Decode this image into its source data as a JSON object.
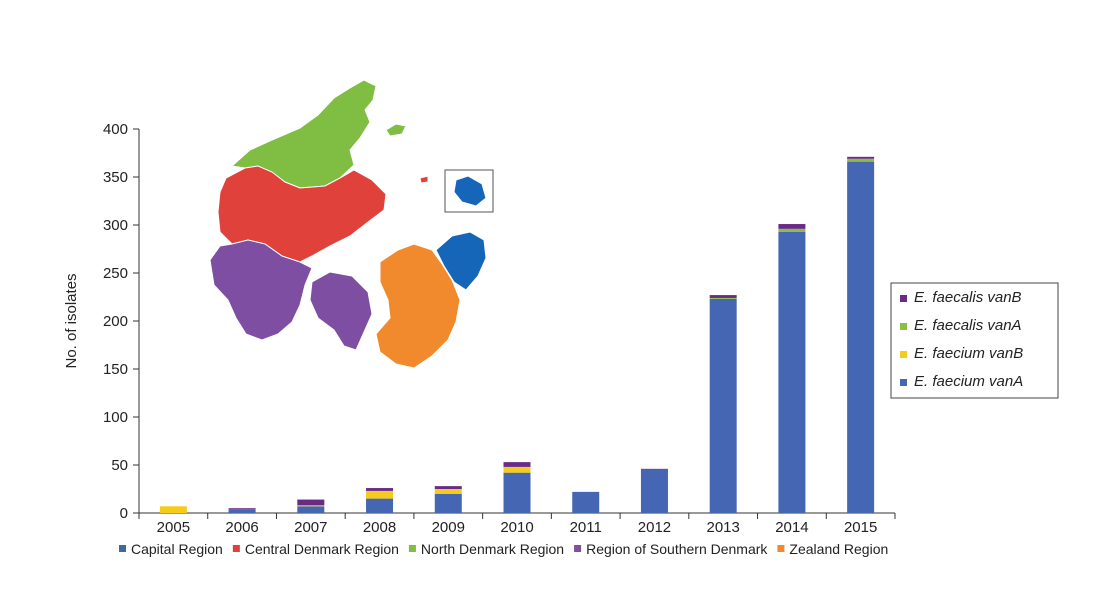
{
  "chart_data": {
    "type": "bar",
    "stacked": true,
    "categories": [
      "2005",
      "2006",
      "2007",
      "2008",
      "2009",
      "2010",
      "2011",
      "2012",
      "2013",
      "2014",
      "2015"
    ],
    "series": [
      {
        "name": "E. faecium vanA",
        "color": "#4567b3",
        "values": [
          0,
          4,
          7,
          15,
          20,
          42,
          22,
          45,
          223,
          293,
          366
        ]
      },
      {
        "name": "E. faecium vanB",
        "color": "#f5cc1c",
        "values": [
          7,
          0,
          1,
          8,
          5,
          6,
          0,
          0,
          0,
          0,
          0
        ]
      },
      {
        "name": "E. faecalis vanA",
        "color": "#8cbf3f",
        "values": [
          0,
          0,
          0,
          0,
          0,
          0,
          0,
          0,
          1,
          3,
          3
        ]
      },
      {
        "name": "E. faecalis vanB",
        "color": "#6a2b86",
        "values": [
          0,
          1,
          6,
          3,
          3,
          5,
          0,
          1,
          3,
          5,
          2
        ]
      }
    ],
    "ylabel": "No. of isolates",
    "xlabel": "",
    "ylim": [
      0,
      400
    ],
    "yticks": [
      0,
      50,
      100,
      150,
      200,
      250,
      300,
      350,
      400
    ],
    "legend_placement": "right",
    "grid": false
  },
  "regions_legend": [
    {
      "name": "Capital Region",
      "color": "#3f67b1"
    },
    {
      "name": "Central Denmark Region",
      "color": "#e0413a"
    },
    {
      "name": "North Denmark Region",
      "color": "#7fbd43"
    },
    {
      "name": "Region of Southern Denmark",
      "color": "#7d4ea1"
    },
    {
      "name": "Zealand Region",
      "color": "#f08a2c"
    }
  ],
  "map_colors": {
    "north": "#7fbd43",
    "central": "#e0413a",
    "southern": "#7d4ea1",
    "zealand": "#f08a2c",
    "capital": "#1565b8"
  }
}
